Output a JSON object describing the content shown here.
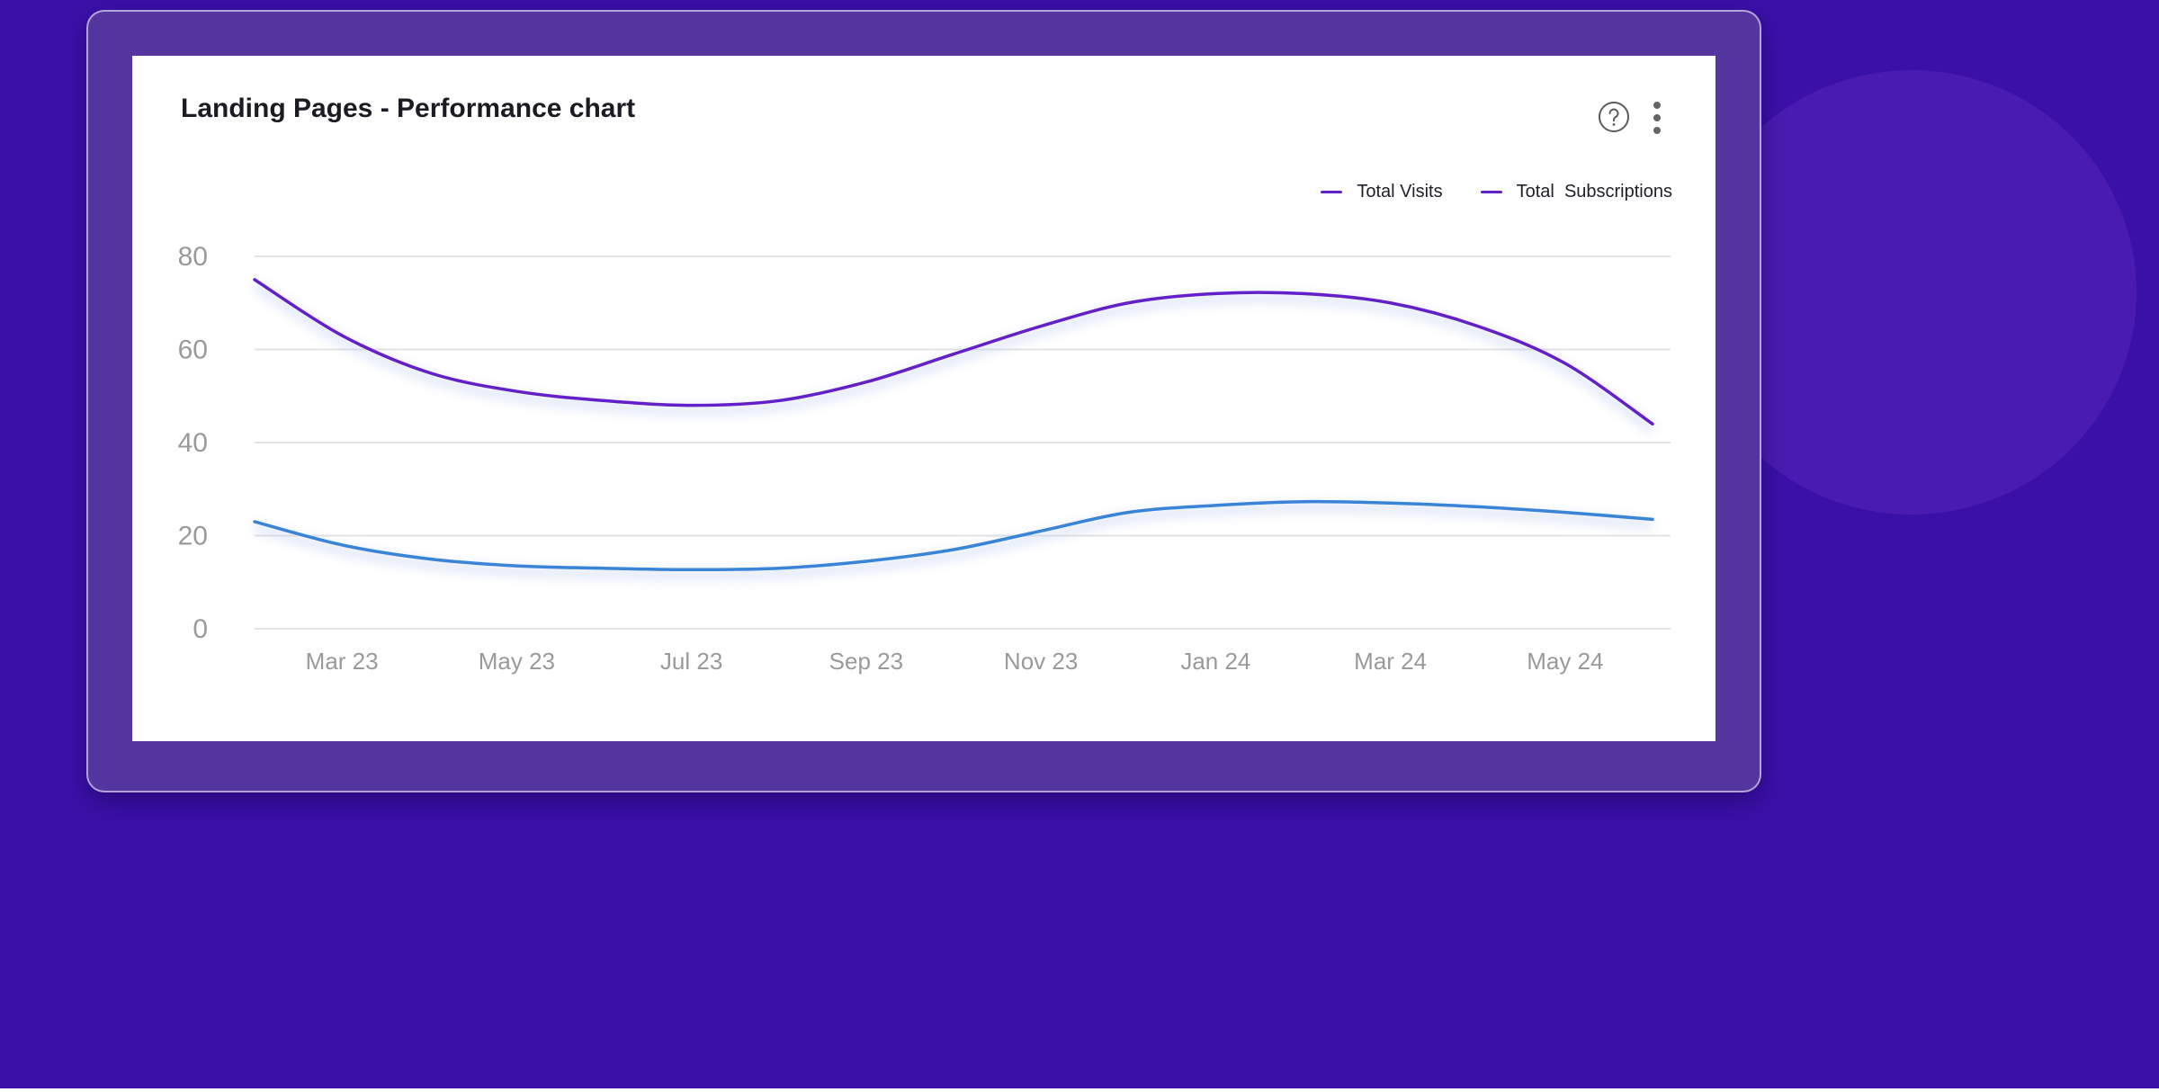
{
  "card": {
    "title": "Landing Pages - Performance chart"
  },
  "icons": {
    "help": "help-circle-icon",
    "more": "more-vertical-icon"
  },
  "colors": {
    "background": "#3b10a8",
    "frame": "#5535a0",
    "total_visits": "#6420c8",
    "total_subscriptions": "#3a84d8",
    "grid": "#e2e2e2",
    "tick_label": "#9a9a9a"
  },
  "chart_data": {
    "type": "line",
    "title": "Landing Pages - Performance chart",
    "xlabel": "",
    "ylabel": "",
    "x_tick_labels": [
      "Mar 23",
      "May 23",
      "Jul 23",
      "Sep 23",
      "Nov 23",
      "Jan 24",
      "Mar 24",
      "May 24"
    ],
    "y_ticks": [
      0,
      20,
      40,
      60,
      80
    ],
    "ylim": [
      0,
      80
    ],
    "grid": true,
    "legend_position": "top-right",
    "legend": [
      "Total Visits",
      "Total  Subscriptions"
    ],
    "x": [
      "Feb 23",
      "Mar 23",
      "Apr 23",
      "May 23",
      "Jun 23",
      "Jul 23",
      "Aug 23",
      "Sep 23",
      "Oct 23",
      "Nov 23",
      "Dec 23",
      "Jan 24",
      "Feb 24",
      "Mar 24",
      "Apr 24",
      "May 24",
      "Jun 24"
    ],
    "series": [
      {
        "name": "Total Visits",
        "color": "#6420c8",
        "values": [
          75,
          63,
          55,
          51,
          49,
          48,
          49,
          53,
          59,
          65,
          70,
          72,
          72,
          70,
          65,
          57,
          44
        ]
      },
      {
        "name": "Total  Subscriptions",
        "color": "#3a84d8",
        "values": [
          23,
          18,
          15,
          13.5,
          13,
          12.7,
          13,
          14.5,
          17,
          21,
          25,
          26.5,
          27.3,
          27,
          26.2,
          25,
          23.5
        ]
      }
    ]
  }
}
